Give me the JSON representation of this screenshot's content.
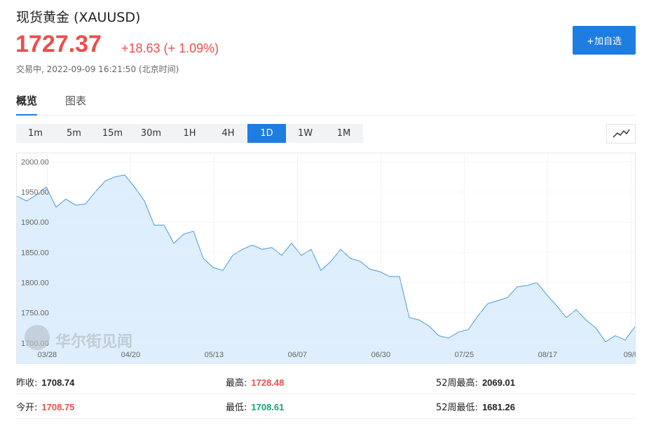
{
  "header": {
    "title": "现货黄金 (XAUUSD)",
    "price": "1727.37",
    "change": "+18.63 (+ 1.09%)",
    "status": "交易中, 2022-09-09 16:21:50 (北京时间)",
    "button": "+加自选"
  },
  "tabs": [
    "概览",
    "图表"
  ],
  "periods": [
    "1m",
    "5m",
    "15m",
    "30m",
    "1H",
    "4H",
    "1D",
    "1W",
    "1M"
  ],
  "active_period": "1D",
  "chart_data": {
    "type": "area",
    "watermark": "华尔街见闻",
    "color": "#4a9ad6",
    "fill": "#deeefc",
    "values": [
      1943,
      1935,
      1945,
      1958,
      1925,
      1938,
      1928,
      1930,
      1950,
      1968,
      1975,
      1978,
      1958,
      1935,
      1895,
      1895,
      1865,
      1880,
      1885,
      1840,
      1825,
      1820,
      1845,
      1855,
      1862,
      1855,
      1858,
      1845,
      1865,
      1845,
      1855,
      1820,
      1835,
      1855,
      1840,
      1835,
      1822,
      1818,
      1810,
      1810,
      1742,
      1738,
      1728,
      1712,
      1708,
      1718,
      1722,
      1745,
      1765,
      1770,
      1775,
      1793,
      1795,
      1800,
      1780,
      1762,
      1742,
      1755,
      1738,
      1725,
      1702,
      1712,
      1705,
      1727
    ],
    "xlim": [
      0,
      63
    ],
    "xticks": [
      {
        "value": 3.1,
        "label": "03/28"
      },
      {
        "value": 11.6,
        "label": "04/20"
      },
      {
        "value": 20.1,
        "label": "05/13"
      },
      {
        "value": 28.6,
        "label": "06/07"
      },
      {
        "value": 37.1,
        "label": "06/30"
      },
      {
        "value": 45.6,
        "label": "07/25"
      },
      {
        "value": 54.1,
        "label": "08/17"
      },
      {
        "value": 62.6,
        "label": "09/0"
      }
    ],
    "ylim": [
      1665,
      2015
    ],
    "yticks": [
      {
        "value": 2000,
        "label": "2000.00"
      },
      {
        "value": 1950,
        "label": "1950.00"
      },
      {
        "value": 1900,
        "label": "1900.00"
      },
      {
        "value": 1850,
        "label": "1850.00"
      },
      {
        "value": 1800,
        "label": "1800.00"
      },
      {
        "value": 1750,
        "label": "1750.00"
      },
      {
        "value": 1700,
        "label": "1700.00"
      }
    ],
    "grid": true
  },
  "stats": [
    [
      {
        "label": "昨收:",
        "value": "1708.74",
        "color": "#222222"
      },
      {
        "label": "最高:",
        "value": "1728.48",
        "color": "#ee4d4d"
      },
      {
        "label": "52周最高:",
        "value": "2069.01",
        "color": "#222222"
      }
    ],
    [
      {
        "label": "今开:",
        "value": "1708.75",
        "color": "#ee4d4d"
      },
      {
        "label": "最低:",
        "value": "1708.61",
        "color": "#1aa37a"
      },
      {
        "label": "52周最低:",
        "value": "1681.26",
        "color": "#222222"
      }
    ]
  ]
}
